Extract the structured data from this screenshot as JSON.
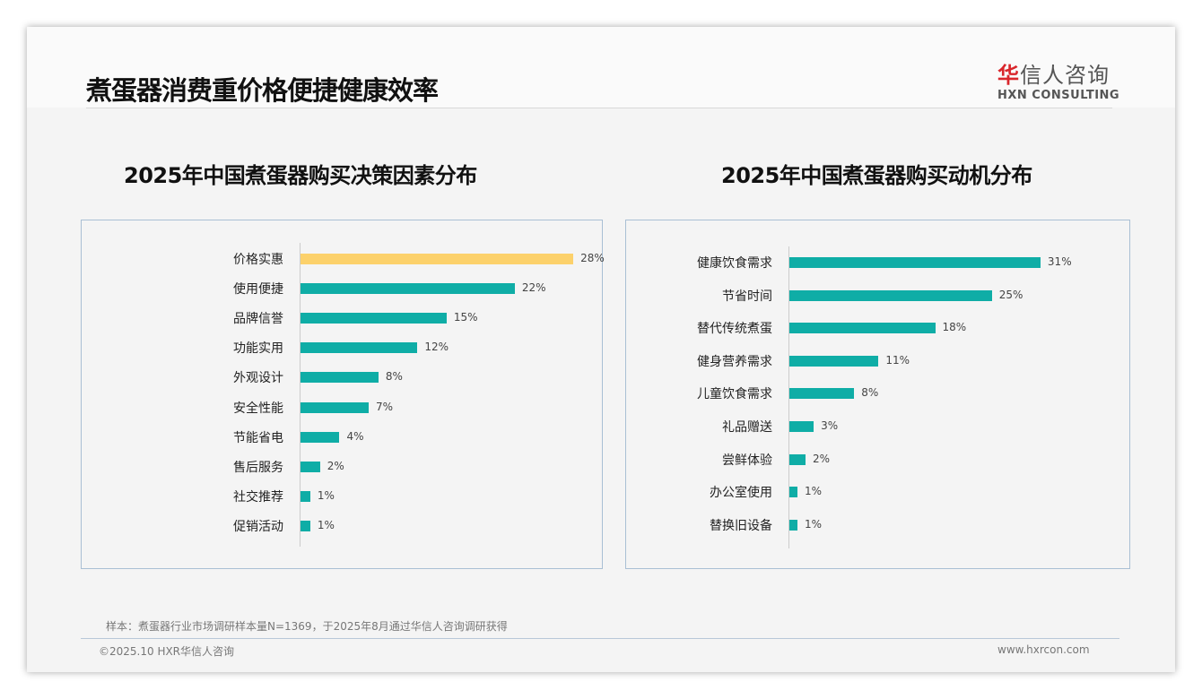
{
  "header": {
    "title": "煮蛋器消费重价格便捷健康效率",
    "logo_cn_red": "华",
    "logo_cn": "信人咨询",
    "logo_en": "HXN CONSULTING"
  },
  "footer": {
    "note": "样本：煮蛋器行业市场调研样本量N=1369，于2025年8月通过华信人咨询调研获得",
    "copyright": "©2025.10 HXR华信人咨询",
    "url": "www.hxrcon.com"
  },
  "colors": {
    "teal": "#0fada6",
    "highlight": "#fcd16b"
  },
  "chart_data": [
    {
      "type": "bar",
      "orientation": "horizontal",
      "title": "2025年中国煮蛋器购买决策因素分布",
      "categories": [
        "价格实惠",
        "使用便捷",
        "品牌信誉",
        "功能实用",
        "外观设计",
        "安全性能",
        "节能省电",
        "售后服务",
        "社交推荐",
        "促销活动"
      ],
      "values": [
        28,
        22,
        15,
        12,
        8,
        7,
        4,
        2,
        1,
        1
      ],
      "labels": [
        "28%",
        "22%",
        "15%",
        "12%",
        "8%",
        "7%",
        "4%",
        "2%",
        "1%",
        "1%"
      ],
      "highlight_index": 0,
      "unit": "%"
    },
    {
      "type": "bar",
      "orientation": "horizontal",
      "title": "2025年中国煮蛋器购买动机分布",
      "categories": [
        "健康饮食需求",
        "节省时间",
        "替代传统煮蛋",
        "健身营养需求",
        "儿童饮食需求",
        "礼品赠送",
        "尝鲜体验",
        "办公室使用",
        "替换旧设备"
      ],
      "values": [
        31,
        25,
        18,
        11,
        8,
        3,
        2,
        1,
        1
      ],
      "labels": [
        "31%",
        "25%",
        "18%",
        "11%",
        "8%",
        "3%",
        "2%",
        "1%",
        "1%"
      ],
      "highlight_index": -1,
      "unit": "%"
    }
  ]
}
